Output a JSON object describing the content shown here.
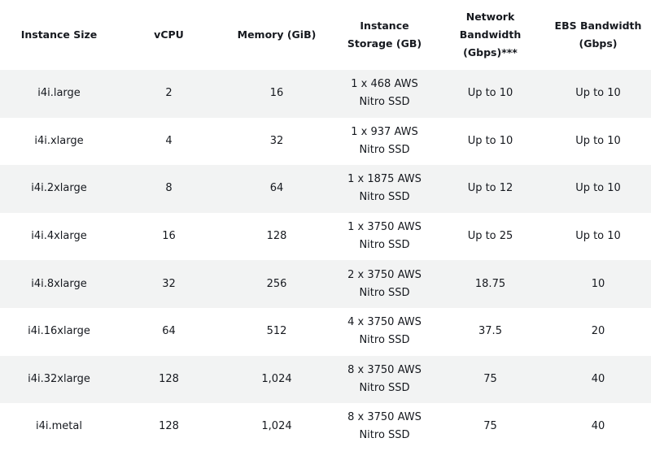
{
  "table": {
    "headers": [
      "Instance Size",
      "vCPU",
      "Memory (GiB)",
      "Instance Storage (GB)",
      "Network Bandwidth (Gbps)***",
      "EBS Bandwidth (Gbps)"
    ],
    "rows": [
      [
        "i4i.large",
        "2",
        "16",
        "1 x 468 AWS Nitro SSD",
        "Up to 10",
        "Up to 10"
      ],
      [
        "i4i.xlarge",
        "4",
        "32",
        "1 x 937 AWS Nitro SSD",
        "Up to 10",
        "Up to 10"
      ],
      [
        "i4i.2xlarge",
        "8",
        "64",
        "1 x 1875 AWS Nitro SSD",
        "Up to 12",
        "Up to 10"
      ],
      [
        "i4i.4xlarge",
        "16",
        "128",
        "1 x 3750 AWS Nitro SSD",
        "Up to 25",
        "Up to 10"
      ],
      [
        "i4i.8xlarge",
        "32",
        "256",
        "2 x 3750 AWS Nitro SSD",
        "18.75",
        "10"
      ],
      [
        "i4i.16xlarge",
        "64",
        "512",
        "4 x 3750 AWS Nitro SSD",
        "37.5",
        "20"
      ],
      [
        "i4i.32xlarge",
        "128",
        "1,024",
        "8 x 3750 AWS Nitro SSD",
        "75",
        "40"
      ],
      [
        "i4i.metal",
        "128",
        "1,024",
        "8 x 3750 AWS Nitro SSD",
        "75",
        "40"
      ]
    ]
  }
}
